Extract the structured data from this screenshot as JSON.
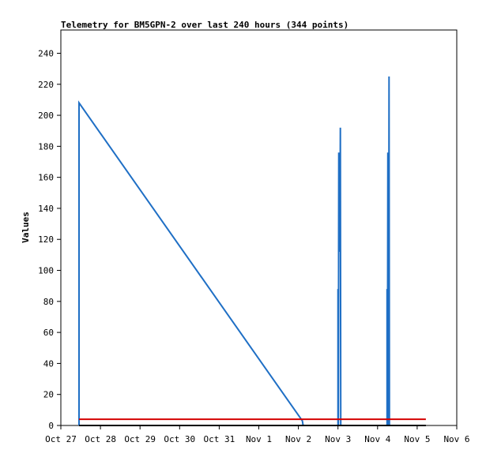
{
  "chart_data": {
    "type": "line",
    "title": "Telemetry for BM5GPN-2 over last 240 hours (344 points)",
    "xlabel": "",
    "ylabel": "Values",
    "x_tick_labels": [
      "Oct 27",
      "Oct 28",
      "Oct 29",
      "Oct 30",
      "Oct 31",
      "Nov 1",
      "Nov 2",
      "Nov 3",
      "Nov 4",
      "Nov 5",
      "Nov 6"
    ],
    "y_ticks": [
      0,
      20,
      40,
      60,
      80,
      100,
      120,
      140,
      160,
      180,
      200,
      220,
      240
    ],
    "xlim_days": [
      0,
      10
    ],
    "ylim": [
      0,
      255
    ],
    "grid": false,
    "legend": "none",
    "series": [
      {
        "color": "#1f6fc5",
        "points": [
          [
            0.46,
            0
          ],
          [
            0.46,
            208
          ],
          [
            6.1,
            3
          ],
          [
            6.12,
            0
          ],
          [
            7.0,
            0
          ],
          [
            7.0,
            88
          ],
          [
            7.01,
            0
          ],
          [
            7.02,
            176
          ],
          [
            7.03,
            112
          ],
          [
            7.04,
            152
          ],
          [
            7.05,
            122
          ],
          [
            7.06,
            192
          ],
          [
            7.07,
            0
          ],
          [
            8.24,
            0
          ],
          [
            8.24,
            88
          ],
          [
            8.25,
            0
          ],
          [
            8.26,
            176
          ],
          [
            8.27,
            88
          ],
          [
            8.28,
            0
          ],
          [
            8.29,
            225
          ],
          [
            8.3,
            0
          ]
        ]
      },
      {
        "color": "#d40000",
        "points": [
          [
            0.46,
            4
          ],
          [
            9.22,
            4
          ]
        ]
      },
      {
        "color": "#000000",
        "points": [
          [
            0.46,
            0
          ],
          [
            9.22,
            0
          ]
        ]
      }
    ]
  }
}
